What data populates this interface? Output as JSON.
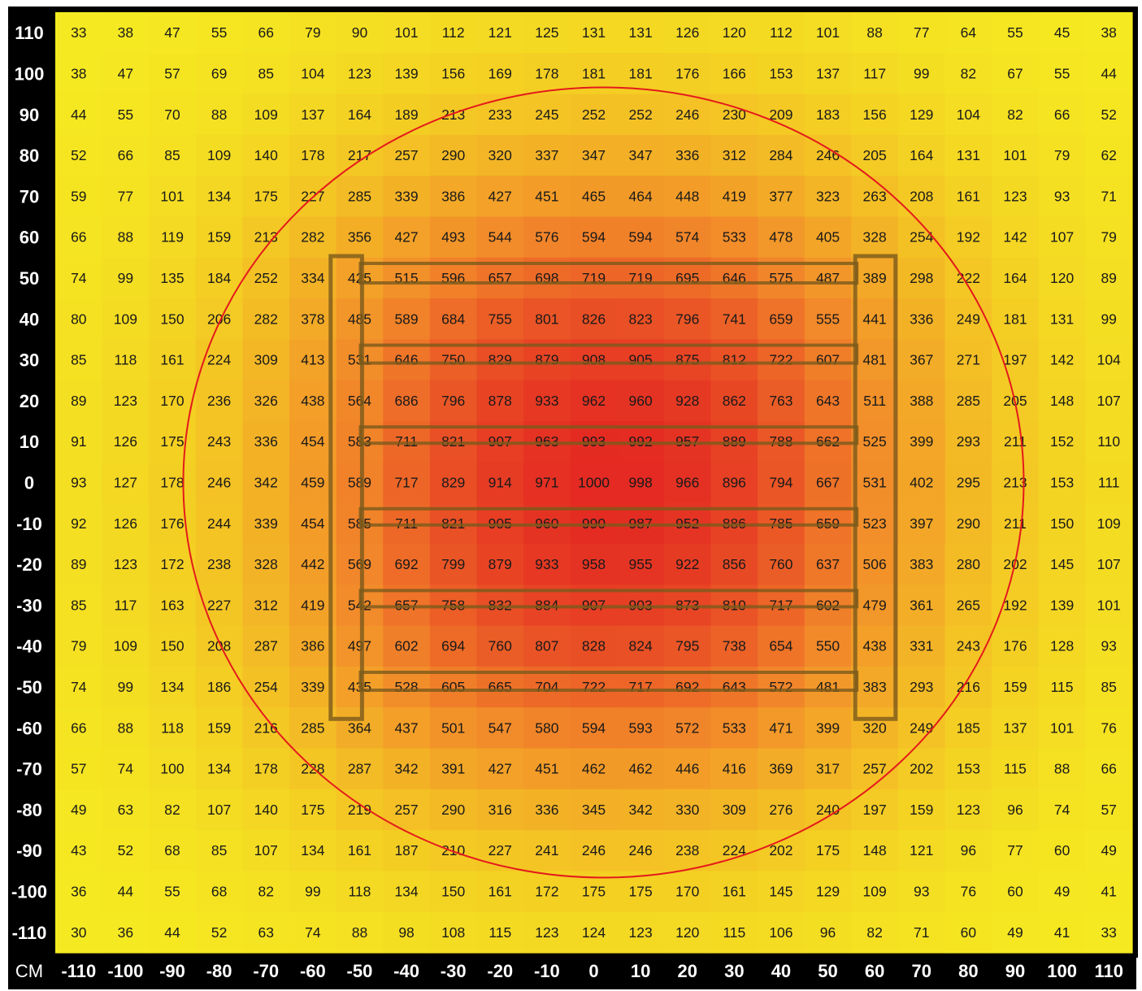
{
  "chart_data": {
    "type": "heatmap",
    "unit_label": "CM",
    "x": [
      -110,
      -100,
      -90,
      -80,
      -70,
      -60,
      -50,
      -40,
      -30,
      -20,
      -10,
      0,
      10,
      20,
      30,
      40,
      50,
      60,
      70,
      80,
      90,
      100,
      110
    ],
    "y": [
      110,
      100,
      90,
      80,
      70,
      60,
      50,
      40,
      30,
      20,
      10,
      0,
      -10,
      -20,
      -30,
      -40,
      -50,
      -60,
      -70,
      -80,
      -90,
      -100,
      -110
    ],
    "values": [
      [
        33,
        38,
        47,
        55,
        66,
        79,
        90,
        101,
        112,
        121,
        125,
        131,
        131,
        126,
        120,
        112,
        101,
        88,
        77,
        64,
        55,
        45,
        38
      ],
      [
        38,
        47,
        57,
        69,
        85,
        104,
        123,
        139,
        156,
        169,
        178,
        181,
        181,
        176,
        166,
        153,
        137,
        117,
        99,
        82,
        67,
        55,
        44
      ],
      [
        44,
        55,
        70,
        88,
        109,
        137,
        164,
        189,
        213,
        233,
        245,
        252,
        252,
        246,
        230,
        209,
        183,
        156,
        129,
        104,
        82,
        66,
        52
      ],
      [
        52,
        66,
        85,
        109,
        140,
        178,
        217,
        257,
        290,
        320,
        337,
        347,
        347,
        336,
        312,
        284,
        246,
        205,
        164,
        131,
        101,
        79,
        62
      ],
      [
        59,
        77,
        101,
        134,
        175,
        227,
        285,
        339,
        386,
        427,
        451,
        465,
        464,
        448,
        419,
        377,
        323,
        263,
        208,
        161,
        123,
        93,
        71
      ],
      [
        66,
        88,
        119,
        159,
        213,
        282,
        356,
        427,
        493,
        544,
        576,
        594,
        594,
        574,
        533,
        478,
        405,
        328,
        254,
        192,
        142,
        107,
        79
      ],
      [
        74,
        99,
        135,
        184,
        252,
        334,
        425,
        515,
        596,
        657,
        698,
        719,
        719,
        695,
        646,
        575,
        487,
        389,
        298,
        222,
        164,
        120,
        89
      ],
      [
        80,
        109,
        150,
        206,
        282,
        378,
        485,
        589,
        684,
        755,
        801,
        826,
        823,
        796,
        741,
        659,
        555,
        441,
        336,
        249,
        181,
        131,
        99
      ],
      [
        85,
        118,
        161,
        224,
        309,
        413,
        531,
        646,
        750,
        829,
        879,
        908,
        905,
        875,
        812,
        722,
        607,
        481,
        367,
        271,
        197,
        142,
        104
      ],
      [
        89,
        123,
        170,
        236,
        326,
        438,
        564,
        686,
        796,
        878,
        933,
        962,
        960,
        928,
        862,
        763,
        643,
        511,
        388,
        285,
        205,
        148,
        107
      ],
      [
        91,
        126,
        175,
        243,
        336,
        454,
        583,
        711,
        821,
        907,
        963,
        993,
        992,
        957,
        889,
        788,
        662,
        525,
        399,
        293,
        211,
        152,
        110
      ],
      [
        93,
        127,
        178,
        246,
        342,
        459,
        589,
        717,
        829,
        914,
        971,
        1000,
        998,
        966,
        896,
        794,
        667,
        531,
        402,
        295,
        213,
        153,
        111
      ],
      [
        92,
        126,
        176,
        244,
        339,
        454,
        585,
        711,
        821,
        905,
        960,
        990,
        987,
        952,
        886,
        785,
        659,
        523,
        397,
        290,
        211,
        150,
        109
      ],
      [
        89,
        123,
        172,
        238,
        328,
        442,
        569,
        692,
        799,
        879,
        933,
        958,
        955,
        922,
        856,
        760,
        637,
        506,
        383,
        280,
        202,
        145,
        107
      ],
      [
        85,
        117,
        163,
        227,
        312,
        419,
        542,
        657,
        758,
        832,
        884,
        907,
        903,
        873,
        810,
        717,
        602,
        479,
        361,
        265,
        192,
        139,
        101
      ],
      [
        79,
        109,
        150,
        208,
        287,
        386,
        497,
        602,
        694,
        760,
        807,
        828,
        824,
        795,
        738,
        654,
        550,
        438,
        331,
        243,
        176,
        128,
        93
      ],
      [
        74,
        99,
        134,
        186,
        254,
        339,
        435,
        528,
        605,
        665,
        704,
        722,
        717,
        692,
        643,
        572,
        481,
        383,
        293,
        216,
        159,
        115,
        85
      ],
      [
        66,
        88,
        118,
        159,
        216,
        285,
        364,
        437,
        501,
        547,
        580,
        594,
        593,
        572,
        533,
        471,
        399,
        320,
        249,
        185,
        137,
        101,
        76
      ],
      [
        57,
        74,
        100,
        134,
        178,
        228,
        287,
        342,
        391,
        427,
        451,
        462,
        462,
        446,
        416,
        369,
        317,
        257,
        202,
        153,
        115,
        88,
        66
      ],
      [
        49,
        63,
        82,
        107,
        140,
        175,
        219,
        257,
        290,
        316,
        336,
        345,
        342,
        330,
        309,
        276,
        240,
        197,
        159,
        123,
        96,
        74,
        57
      ],
      [
        43,
        52,
        68,
        85,
        107,
        134,
        161,
        187,
        210,
        227,
        241,
        246,
        246,
        238,
        224,
        202,
        175,
        148,
        121,
        96,
        77,
        60,
        49
      ],
      [
        36,
        44,
        55,
        68,
        82,
        99,
        118,
        134,
        150,
        161,
        172,
        175,
        175,
        170,
        161,
        145,
        129,
        109,
        93,
        76,
        60,
        49,
        41
      ],
      [
        30,
        36,
        44,
        52,
        63,
        74,
        88,
        98,
        108,
        115,
        123,
        124,
        123,
        120,
        115,
        106,
        96,
        82,
        71,
        60,
        49,
        41,
        33
      ]
    ],
    "color_scale": {
      "low": "#f5f020",
      "mid": "#f28a2a",
      "high": "#e42a22"
    },
    "circle_color": "#e41a1c",
    "fixture_color": "#7a5a1c"
  }
}
